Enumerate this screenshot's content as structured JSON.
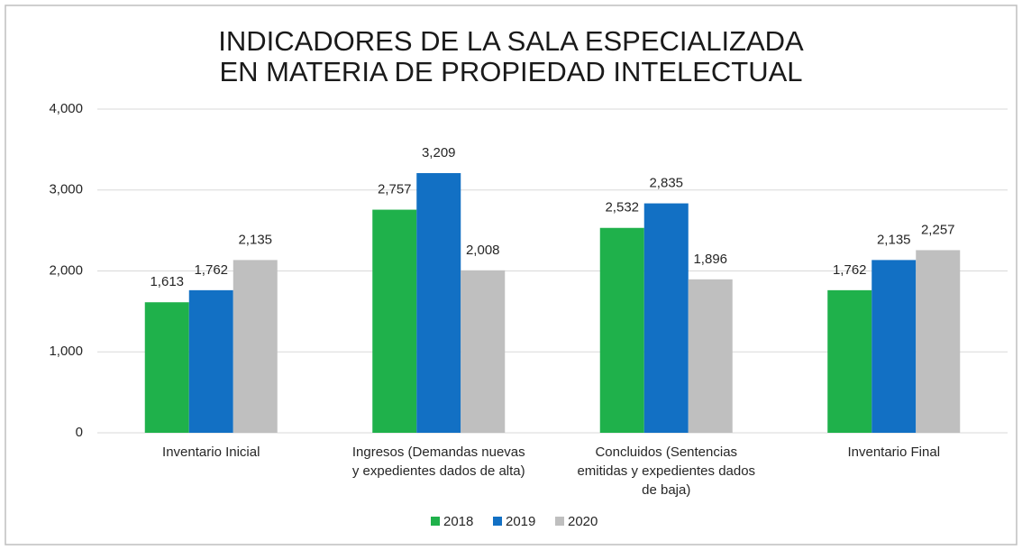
{
  "chart_data": {
    "type": "bar",
    "title": [
      "INDICADORES DE LA SALA ESPECIALIZADA",
      "EN MATERIA DE PROPIEDAD INTELECTUAL"
    ],
    "categories": [
      [
        "Inventario Inicial"
      ],
      [
        "Ingresos (Demandas nuevas",
        "y expedientes dados de alta)"
      ],
      [
        "Concluidos (Sentencias",
        "emitidas y expedientes dados",
        "de baja)"
      ],
      [
        "Inventario Final"
      ]
    ],
    "series": [
      {
        "name": "2018",
        "color": "#1fb14b",
        "values": [
          1613,
          2757,
          2532,
          1762
        ],
        "value_labels": [
          "1,613",
          "2,757",
          "2,532",
          "1,762"
        ]
      },
      {
        "name": "2019",
        "color": "#1270c4",
        "values": [
          1762,
          3209,
          2835,
          2135
        ],
        "value_labels": [
          "1,762",
          "3,209",
          "2,835",
          "2,135"
        ]
      },
      {
        "name": "2020",
        "color": "#bfbfbf",
        "values": [
          2135,
          2008,
          1896,
          2257
        ],
        "value_labels": [
          "2,135",
          "2,008",
          "1,896",
          "2,257"
        ]
      }
    ],
    "ylim": [
      0,
      4000
    ],
    "yticks": [
      0,
      {
        "value": 1000,
        "label": "1,000"
      },
      {
        "value": 2000,
        "label": "2,000"
      },
      {
        "value": 3000,
        "label": "3,000"
      },
      {
        "value": 4000,
        "label": "4,000"
      }
    ],
    "grid": true,
    "legend": "bottom"
  }
}
